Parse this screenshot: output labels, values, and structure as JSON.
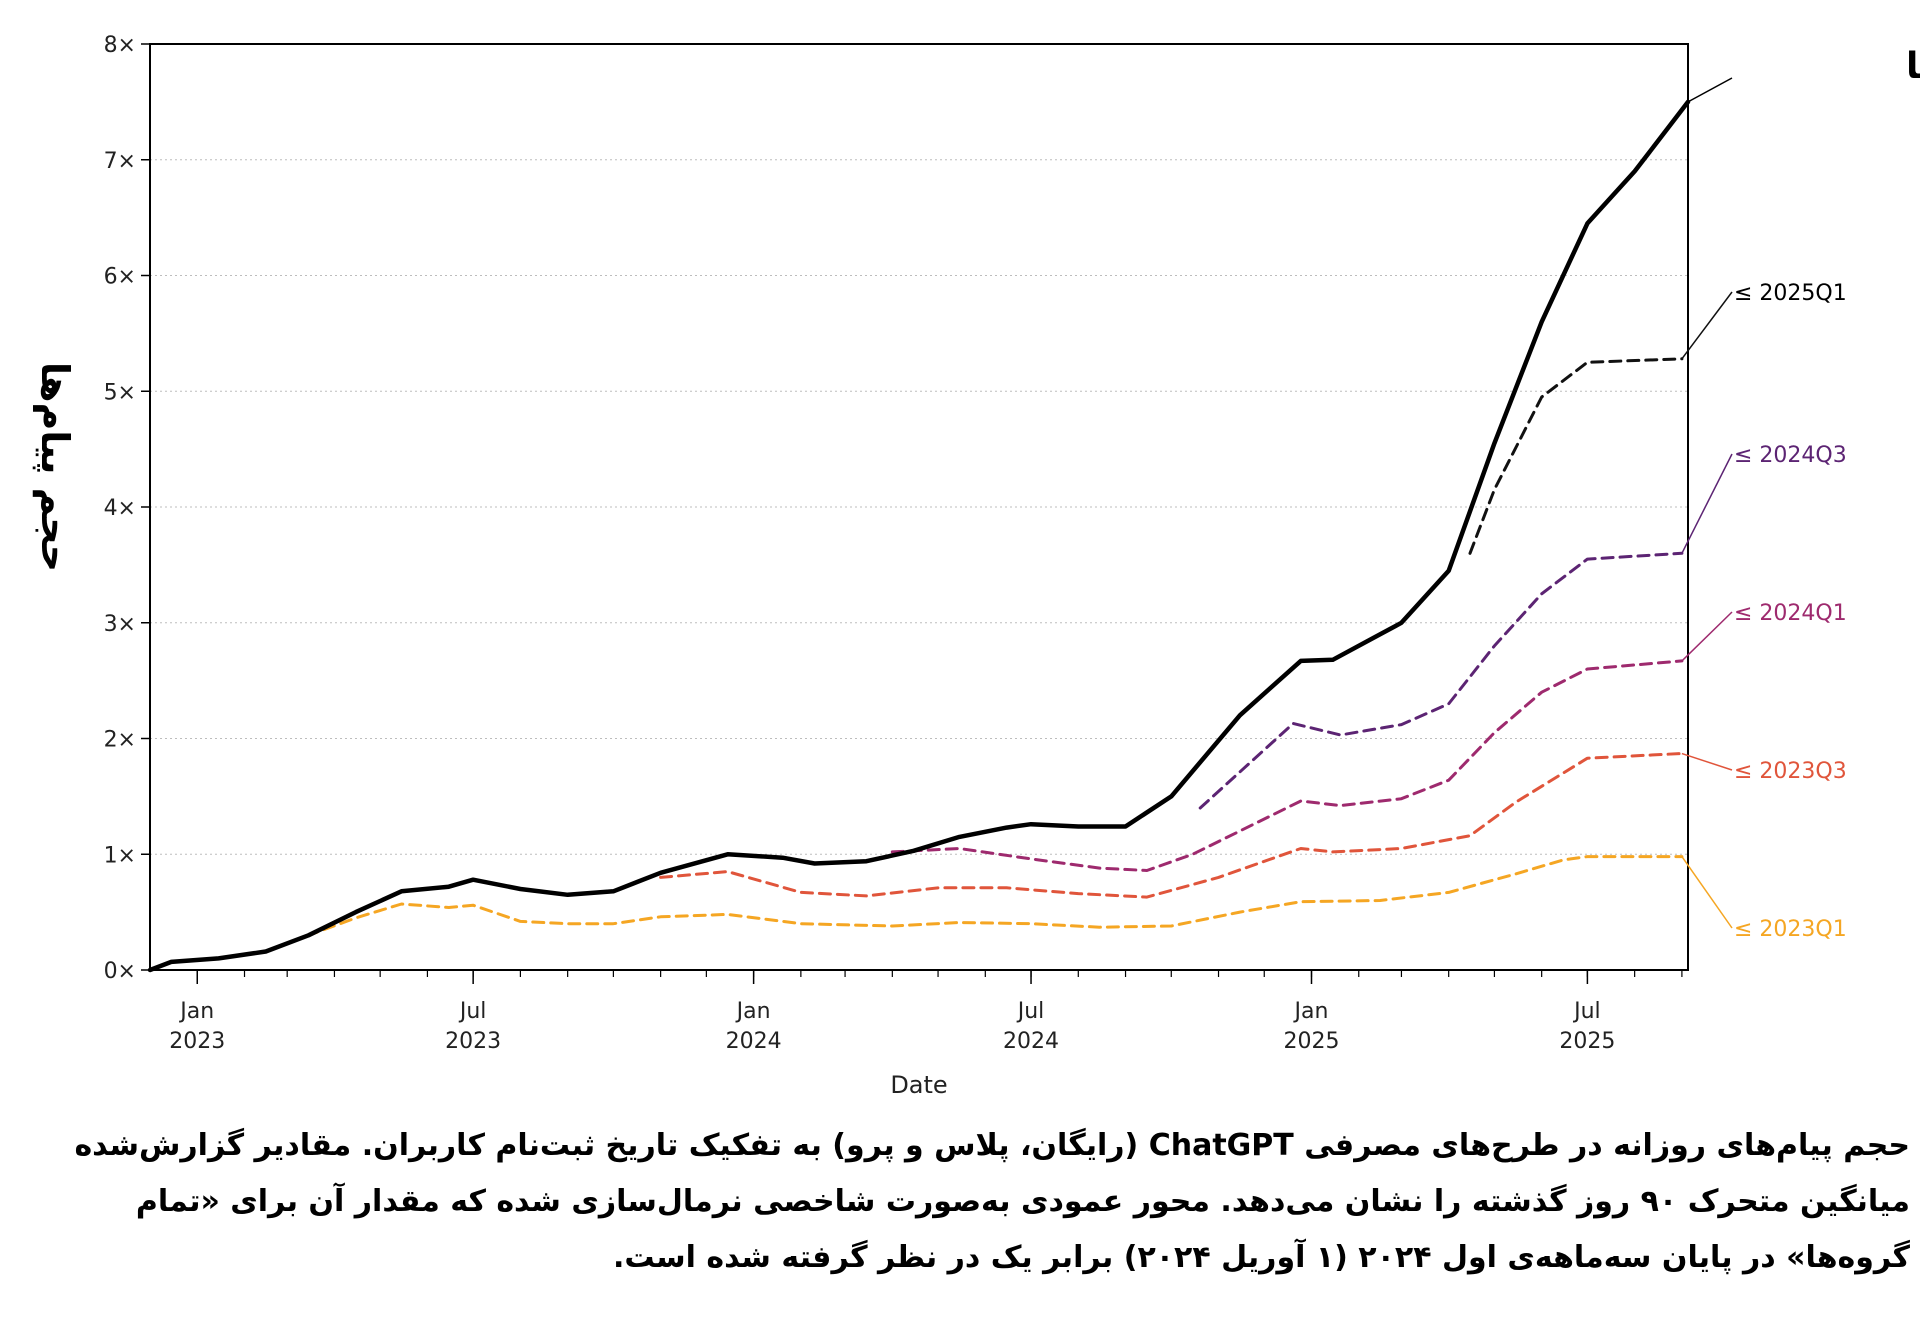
{
  "chart_data": {
    "type": "line",
    "xlabel": "Date",
    "ylabel": "حجم پیام‌ها",
    "x_range": [
      "2022-12-01",
      "2025-09-05"
    ],
    "ylim": [
      0,
      8
    ],
    "y_ticks": [
      {
        "value": 0,
        "label": "0×"
      },
      {
        "value": 1,
        "label": "1×"
      },
      {
        "value": 2,
        "label": "2×"
      },
      {
        "value": 3,
        "label": "3×"
      },
      {
        "value": 4,
        "label": "4×"
      },
      {
        "value": 5,
        "label": "5×"
      },
      {
        "value": 6,
        "label": "6×"
      },
      {
        "value": 7,
        "label": "7×"
      },
      {
        "value": 8,
        "label": "8×"
      }
    ],
    "x_ticks": [
      {
        "date": "2023-01-01",
        "month": "Jan",
        "year": "2023"
      },
      {
        "date": "2023-07-01",
        "month": "Jul",
        "year": "2023"
      },
      {
        "date": "2024-01-01",
        "month": "Jan",
        "year": "2024"
      },
      {
        "date": "2024-07-01",
        "month": "Jul",
        "year": "2024"
      },
      {
        "date": "2025-01-01",
        "month": "Jan",
        "year": "2025"
      },
      {
        "date": "2025-07-01",
        "month": "Jul",
        "year": "2025"
      }
    ],
    "grid": true,
    "series": [
      {
        "name": "≤ 2023Q1",
        "color": "#f5a623",
        "dash": true,
        "points": [
          [
            "2022-12-01",
            0
          ],
          [
            "2022-12-15",
            0.07
          ],
          [
            "2023-01-15",
            0.1
          ],
          [
            "2023-02-15",
            0.16
          ],
          [
            "2023-03-15",
            0.3
          ],
          [
            "2023-04-15",
            0.45
          ],
          [
            "2023-05-15",
            0.57
          ],
          [
            "2023-06-15",
            0.54
          ],
          [
            "2023-07-01",
            0.56
          ],
          [
            "2023-08-01",
            0.42
          ],
          [
            "2023-09-01",
            0.4
          ],
          [
            "2023-10-01",
            0.4
          ],
          [
            "2023-11-01",
            0.46
          ],
          [
            "2023-12-15",
            0.48
          ],
          [
            "2024-02-01",
            0.4
          ],
          [
            "2024-04-01",
            0.38
          ],
          [
            "2024-05-15",
            0.41
          ],
          [
            "2024-07-01",
            0.4
          ],
          [
            "2024-08-15",
            0.37
          ],
          [
            "2024-10-01",
            0.38
          ],
          [
            "2024-11-15",
            0.5
          ],
          [
            "2024-12-25",
            0.59
          ],
          [
            "2025-02-15",
            0.6
          ],
          [
            "2025-04-01",
            0.67
          ],
          [
            "2025-05-15",
            0.83
          ],
          [
            "2025-06-15",
            0.95
          ],
          [
            "2025-07-01",
            0.98
          ],
          [
            "2025-09-01",
            0.98
          ]
        ]
      },
      {
        "name": "≤ 2023Q3",
        "color": "#e0553b",
        "dash": true,
        "points": [
          [
            "2023-11-01",
            0.8
          ],
          [
            "2023-12-15",
            0.85
          ],
          [
            "2024-02-01",
            0.67
          ],
          [
            "2024-03-15",
            0.64
          ],
          [
            "2024-05-01",
            0.71
          ],
          [
            "2024-06-15",
            0.71
          ],
          [
            "2024-08-01",
            0.66
          ],
          [
            "2024-09-15",
            0.63
          ],
          [
            "2024-11-01",
            0.8
          ],
          [
            "2024-12-25",
            1.05
          ],
          [
            "2025-01-15",
            1.02
          ],
          [
            "2025-03-01",
            1.05
          ],
          [
            "2025-04-15",
            1.16
          ],
          [
            "2025-05-15",
            1.45
          ],
          [
            "2025-06-15",
            1.7
          ],
          [
            "2025-07-01",
            1.83
          ],
          [
            "2025-09-01",
            1.87
          ]
        ]
      },
      {
        "name": "≤ 2024Q1",
        "color": "#9e2a6e",
        "dash": true,
        "points": [
          [
            "2024-04-01",
            1.02
          ],
          [
            "2024-05-15",
            1.05
          ],
          [
            "2024-07-01",
            0.96
          ],
          [
            "2024-08-15",
            0.88
          ],
          [
            "2024-09-15",
            0.86
          ],
          [
            "2024-10-15",
            1.0
          ],
          [
            "2024-12-25",
            1.46
          ],
          [
            "2025-01-20",
            1.42
          ],
          [
            "2025-03-01",
            1.48
          ],
          [
            "2025-04-01",
            1.64
          ],
          [
            "2025-05-01",
            2.05
          ],
          [
            "2025-06-01",
            2.4
          ],
          [
            "2025-07-01",
            2.6
          ],
          [
            "2025-09-01",
            2.67
          ]
        ]
      },
      {
        "name": "≤ 2024Q3",
        "color": "#5c2473",
        "dash": true,
        "points": [
          [
            "2024-10-20",
            1.4
          ],
          [
            "2024-12-20",
            2.13
          ],
          [
            "2025-01-20",
            2.03
          ],
          [
            "2025-03-01",
            2.12
          ],
          [
            "2025-04-01",
            2.3
          ],
          [
            "2025-05-01",
            2.8
          ],
          [
            "2025-06-01",
            3.25
          ],
          [
            "2025-07-01",
            3.55
          ],
          [
            "2025-09-01",
            3.6
          ]
        ]
      },
      {
        "name": "≤ 2025Q1",
        "color": "#111111",
        "dash": true,
        "points": [
          [
            "2025-04-15",
            3.6
          ],
          [
            "2025-05-01",
            4.15
          ],
          [
            "2025-06-01",
            4.95
          ],
          [
            "2025-07-01",
            5.25
          ],
          [
            "2025-09-01",
            5.28
          ]
        ]
      },
      {
        "name": "تمام گروه‌ها",
        "color": "#000000",
        "dash": false,
        "points": [
          [
            "2022-12-01",
            0
          ],
          [
            "2022-12-15",
            0.07
          ],
          [
            "2023-01-15",
            0.1
          ],
          [
            "2023-02-15",
            0.16
          ],
          [
            "2023-03-15",
            0.3
          ],
          [
            "2023-04-15",
            0.5
          ],
          [
            "2023-05-15",
            0.68
          ],
          [
            "2023-06-15",
            0.72
          ],
          [
            "2023-07-01",
            0.78
          ],
          [
            "2023-08-01",
            0.7
          ],
          [
            "2023-09-01",
            0.65
          ],
          [
            "2023-10-01",
            0.68
          ],
          [
            "2023-11-01",
            0.84
          ],
          [
            "2023-12-15",
            1.0
          ],
          [
            "2024-01-20",
            0.97
          ],
          [
            "2024-02-10",
            0.92
          ],
          [
            "2024-03-15",
            0.94
          ],
          [
            "2024-04-15",
            1.03
          ],
          [
            "2024-05-15",
            1.15
          ],
          [
            "2024-06-15",
            1.23
          ],
          [
            "2024-07-01",
            1.26
          ],
          [
            "2024-08-01",
            1.24
          ],
          [
            "2024-09-01",
            1.24
          ],
          [
            "2024-10-01",
            1.5
          ],
          [
            "2024-11-15",
            2.2
          ],
          [
            "2024-12-25",
            2.67
          ],
          [
            "2025-01-15",
            2.68
          ],
          [
            "2025-03-01",
            3.0
          ],
          [
            "2025-04-01",
            3.45
          ],
          [
            "2025-05-01",
            4.55
          ],
          [
            "2025-06-01",
            5.6
          ],
          [
            "2025-07-01",
            6.45
          ],
          [
            "2025-08-01",
            6.9
          ],
          [
            "2025-09-05",
            7.5
          ]
        ]
      }
    ],
    "legend_order": [
      {
        "name": "تمام گروه‌ها",
        "main": true
      },
      {
        "name": "≤ 2025Q1"
      },
      {
        "name": "≤ 2024Q3"
      },
      {
        "name": "≤ 2024Q1"
      },
      {
        "name": "≤ 2023Q3"
      },
      {
        "name": "≤ 2023Q1"
      }
    ]
  },
  "caption": "حجم پیام‌های روزانه در طرح‌های مصرفی ChatGPT (رایگان، پلاس و پرو) به تفکیک تاریخ ثبت‌نام کاربران. مقادیر گزارش‌شده میانگین متحرک ۹۰ روز گذشته را نشان می‌دهد. محور عمودی به‌صورت شاخصی نرمال‌سازی شده که مقدار آن برای «تمام گروه‌ها» در پایان سه‌ماهه‌ی اول ۲۰۲۴ (۱ آوریل ۲۰۲۴) برابر یک در نظر گرفته شده است."
}
